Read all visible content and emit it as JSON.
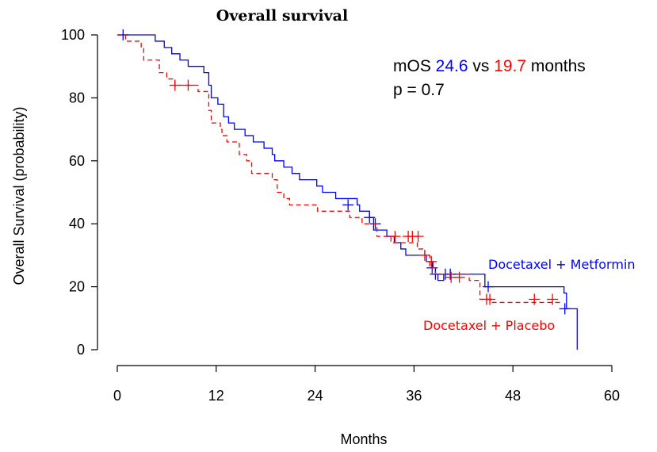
{
  "colors": {
    "metformin": "#0000ff",
    "placebo": "#ff0000",
    "axis": "#000000"
  },
  "chart_data": {
    "type": "line",
    "title": "Overall survival",
    "xlabel": "Months",
    "ylabel": "Overall Survival (probability)",
    "xlim": [
      0,
      60
    ],
    "ylim": [
      0,
      100
    ],
    "xticks": [
      0,
      12,
      24,
      36,
      48,
      60
    ],
    "yticks": [
      0,
      20,
      40,
      60,
      80,
      100
    ],
    "grid": false,
    "annotation": {
      "prefix": "mOS ",
      "metformin_median": "24.6",
      "mid": " vs ",
      "placebo_median": "19.7",
      "suffix": " months",
      "pvalue": "p = 0.7"
    },
    "series": [
      {
        "name": "Docetaxel + Metformin",
        "style": "solid",
        "color": "#0000ff",
        "steps": [
          [
            0,
            100
          ],
          [
            4.6,
            98
          ],
          [
            5.7,
            96
          ],
          [
            6.6,
            94
          ],
          [
            7.6,
            92
          ],
          [
            8.6,
            90
          ],
          [
            10.5,
            88
          ],
          [
            11.1,
            84
          ],
          [
            11.4,
            80
          ],
          [
            12.2,
            78
          ],
          [
            12.9,
            74
          ],
          [
            13.5,
            72
          ],
          [
            14.2,
            70
          ],
          [
            15.5,
            68
          ],
          [
            16.5,
            66
          ],
          [
            17.8,
            64
          ],
          [
            18.8,
            62
          ],
          [
            19.1,
            60
          ],
          [
            20.2,
            58
          ],
          [
            21.2,
            56
          ],
          [
            22.1,
            54
          ],
          [
            24.2,
            52
          ],
          [
            24.9,
            50
          ],
          [
            26.5,
            48
          ],
          [
            29.1,
            46
          ],
          [
            29.4,
            44
          ],
          [
            30.6,
            42
          ],
          [
            31.1,
            38
          ],
          [
            32.7,
            36
          ],
          [
            33.6,
            34
          ],
          [
            34.4,
            32
          ],
          [
            35.0,
            30
          ],
          [
            37.5,
            28
          ],
          [
            38.3,
            26
          ],
          [
            38.6,
            24
          ],
          [
            38.9,
            22
          ],
          [
            39.6,
            24
          ],
          [
            44.6,
            20
          ],
          [
            54.2,
            18
          ],
          [
            54.5,
            13
          ],
          [
            55.8,
            0
          ]
        ],
        "end": 55.8,
        "censor": [
          [
            0.7,
            100
          ],
          [
            28.0,
            46
          ],
          [
            30.6,
            42
          ],
          [
            31.3,
            40
          ],
          [
            38.2,
            26
          ],
          [
            38.6,
            24
          ],
          [
            39.8,
            24
          ],
          [
            40.4,
            24
          ],
          [
            45.0,
            20
          ],
          [
            54.3,
            13
          ]
        ]
      },
      {
        "name": "Docetaxel + Placebo",
        "style": "dashed",
        "color": "#ff0000",
        "steps": [
          [
            0,
            100
          ],
          [
            1.0,
            98
          ],
          [
            2.9,
            96
          ],
          [
            3.2,
            92
          ],
          [
            5.1,
            88
          ],
          [
            6.0,
            86
          ],
          [
            7.0,
            84
          ],
          [
            9.8,
            82
          ],
          [
            11.1,
            76
          ],
          [
            11.4,
            72
          ],
          [
            12.5,
            70
          ],
          [
            12.7,
            68
          ],
          [
            13.3,
            66
          ],
          [
            14.8,
            62
          ],
          [
            15.7,
            60
          ],
          [
            16.3,
            56
          ],
          [
            18.8,
            54
          ],
          [
            19.4,
            50
          ],
          [
            20.2,
            48
          ],
          [
            20.9,
            46
          ],
          [
            24.3,
            44
          ],
          [
            28.2,
            42
          ],
          [
            29.7,
            40
          ],
          [
            31.5,
            36
          ],
          [
            33.2,
            34
          ],
          [
            36.4,
            32
          ],
          [
            37.3,
            30
          ],
          [
            37.9,
            26
          ],
          [
            38.6,
            24
          ],
          [
            42.7,
            22
          ],
          [
            44.0,
            16
          ],
          [
            45.3,
            15
          ],
          [
            53.8,
            15
          ]
        ],
        "end": 53.8,
        "censor": [
          [
            7.0,
            84
          ],
          [
            8.6,
            84
          ],
          [
            33.7,
            36
          ],
          [
            35.3,
            36
          ],
          [
            35.8,
            36
          ],
          [
            36.5,
            36
          ],
          [
            37.3,
            30
          ],
          [
            38.1,
            28
          ],
          [
            40.5,
            23
          ],
          [
            41.5,
            23
          ],
          [
            44.8,
            16
          ],
          [
            45.2,
            16
          ],
          [
            50.6,
            16
          ],
          [
            52.8,
            16
          ]
        ]
      }
    ]
  }
}
